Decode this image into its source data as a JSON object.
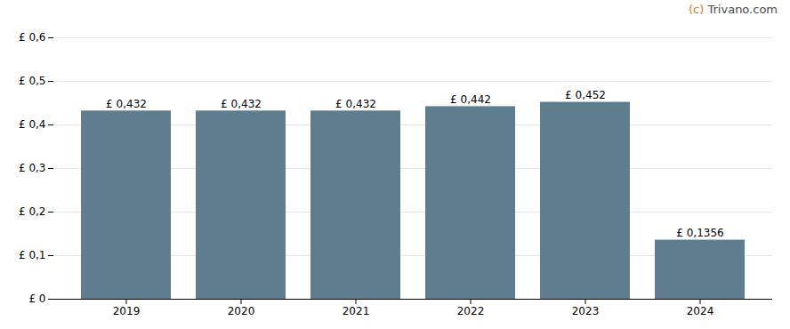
{
  "chart_data": {
    "type": "bar",
    "categories": [
      "2019",
      "2020",
      "2021",
      "2022",
      "2023",
      "2024"
    ],
    "values": [
      0.432,
      0.432,
      0.432,
      0.442,
      0.452,
      0.1356
    ],
    "value_labels": [
      "£ 0,432",
      "£ 0,432",
      "£ 0,432",
      "£ 0,442",
      "£ 0,452",
      "£ 0,1356"
    ],
    "data_labels": true,
    "color": "#5f7d8c",
    "ylim": [
      0,
      0.6
    ],
    "yticks": [
      {
        "value": 0.0,
        "label": "£ 0"
      },
      {
        "value": 0.1,
        "label": "£ 0,1"
      },
      {
        "value": 0.2,
        "label": "£ 0,2"
      },
      {
        "value": 0.3,
        "label": "£ 0,3"
      },
      {
        "value": 0.4,
        "label": "£ 0,4"
      },
      {
        "value": 0.5,
        "label": "£ 0,5"
      },
      {
        "value": 0.6,
        "label": "£ 0,6"
      }
    ],
    "grid": true,
    "annotations": [
      {
        "text": "(c) ",
        "color": "#e07820"
      },
      {
        "text": "Trivano.com",
        "color": "#4a4a4a"
      }
    ]
  }
}
